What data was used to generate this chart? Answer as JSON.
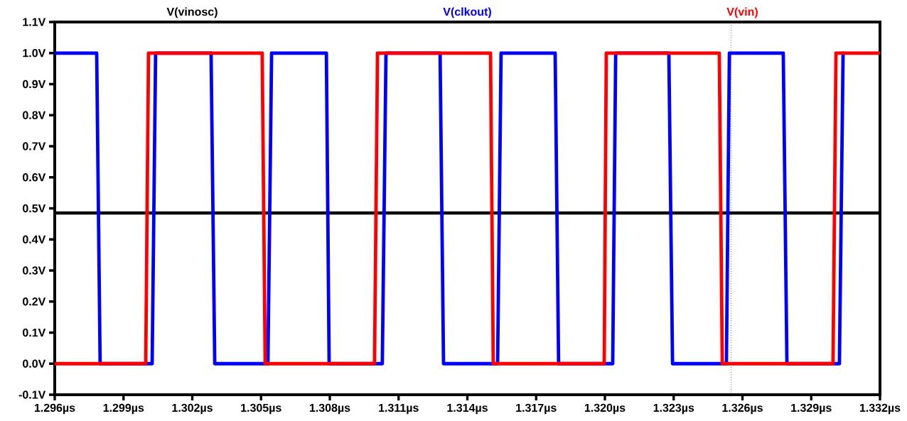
{
  "chart_data": {
    "type": "line",
    "series": [
      {
        "name": "V(vinosc)",
        "color": "#000000",
        "x": [
          1.296,
          1.332
        ],
        "values": [
          0.485,
          0.485
        ]
      },
      {
        "name": "V(clkout)",
        "color": "#0000ff",
        "x": [
          1.296,
          1.29783,
          1.29798,
          1.30025,
          1.3004,
          1.30282,
          1.30298,
          1.3053,
          1.30546,
          1.30785,
          1.30797,
          1.31029,
          1.31045,
          1.31281,
          1.31296,
          1.31532,
          1.31547,
          1.31783,
          1.31798,
          1.32034,
          1.32047,
          1.32279,
          1.32295,
          1.3253,
          1.32543,
          1.32778,
          1.32794,
          1.33023,
          1.33039
        ],
        "values": [
          1,
          1,
          0,
          0,
          1,
          1,
          0,
          0,
          1,
          1,
          0,
          0,
          1,
          1,
          0,
          0,
          1,
          1,
          0,
          0,
          1,
          1,
          0,
          0,
          1,
          1,
          0,
          0,
          1
        ]
      },
      {
        "name": "V(vin)",
        "color": "#ff0000",
        "x": [
          1.296,
          1.29997,
          1.30009,
          1.30505,
          1.30518,
          1.30995,
          1.31008,
          1.31501,
          1.31513,
          1.31997,
          1.32006,
          1.32499,
          1.32512,
          1.32995,
          1.33008,
          1.332
        ],
        "values": [
          0,
          0,
          1,
          1,
          0,
          0,
          1,
          1,
          0,
          0,
          1,
          1,
          0,
          0,
          1,
          1
        ]
      }
    ],
    "xlim": [
      1.296,
      1.332
    ],
    "xticks": [
      {
        "value": 1.296,
        "label": "1.296µs"
      },
      {
        "value": 1.299,
        "label": "1.299µs"
      },
      {
        "value": 1.302,
        "label": "1.302µs"
      },
      {
        "value": 1.305,
        "label": "1.305µs"
      },
      {
        "value": 1.308,
        "label": "1.308µs"
      },
      {
        "value": 1.311,
        "label": "1.311µs"
      },
      {
        "value": 1.314,
        "label": "1.314µs"
      },
      {
        "value": 1.317,
        "label": "1.317µs"
      },
      {
        "value": 1.32,
        "label": "1.320µs"
      },
      {
        "value": 1.323,
        "label": "1.323µs"
      },
      {
        "value": 1.326,
        "label": "1.326µs"
      },
      {
        "value": 1.329,
        "label": "1.329µs"
      },
      {
        "value": 1.332,
        "label": "1.332µs"
      }
    ],
    "ylim": [
      -0.1,
      1.1
    ],
    "yticks": [
      {
        "value": -0.1,
        "label": "-0.1V"
      },
      {
        "value": 0,
        "label": "0.0V"
      },
      {
        "value": 0.1,
        "label": "0.1V"
      },
      {
        "value": 0.2,
        "label": "0.2V"
      },
      {
        "value": 0.3,
        "label": "0.3V"
      },
      {
        "value": 0.4,
        "label": "0.4V"
      },
      {
        "value": 0.5,
        "label": "0.5V"
      },
      {
        "value": 0.6,
        "label": "0.6V"
      },
      {
        "value": 0.7,
        "label": "0.7V"
      },
      {
        "value": 0.8,
        "label": "0.8V"
      },
      {
        "value": 0.9,
        "label": "0.9V"
      },
      {
        "value": 1.0,
        "label": "1.0V"
      },
      {
        "value": 1.1,
        "label": "1.1V"
      }
    ],
    "ref_lines": [
      {
        "axis": "x",
        "value": 1.3255,
        "color": "#000000",
        "line_style": "dotted"
      }
    ],
    "legend": "top",
    "line_style": "solid",
    "marker": "none"
  }
}
